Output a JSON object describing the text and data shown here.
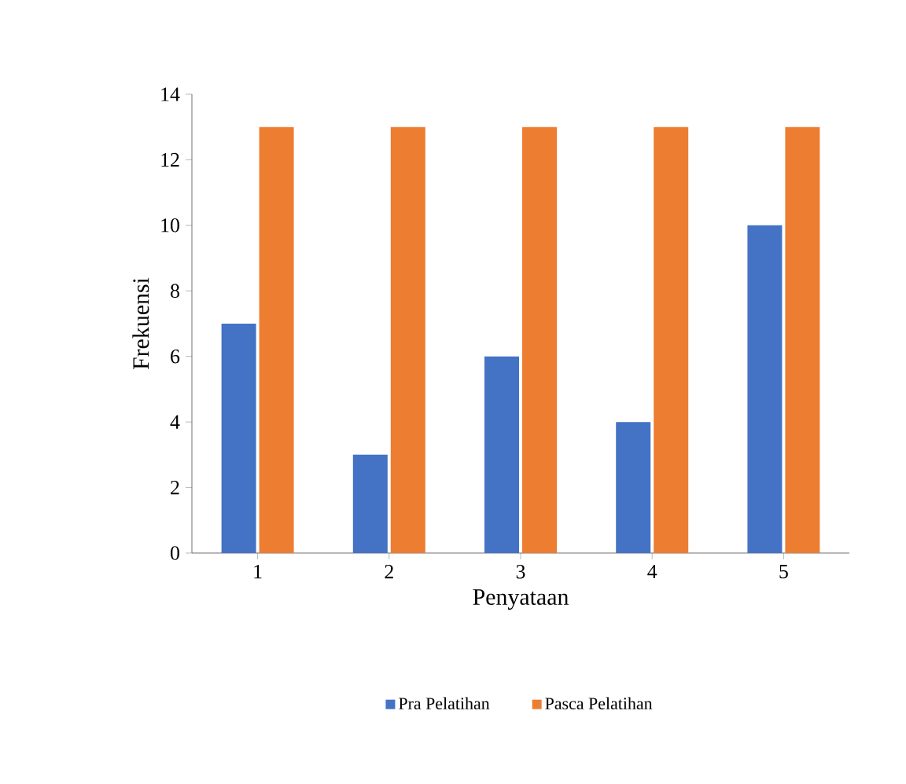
{
  "chart_data": {
    "type": "bar",
    "xlabel": "Penyataan",
    "ylabel": "Frekuensi",
    "categories": [
      "1",
      "2",
      "3",
      "4",
      "5"
    ],
    "series": [
      {
        "name": "Pra Pelatihan",
        "color": "#4472c4",
        "values": [
          7,
          3,
          6,
          4,
          10
        ]
      },
      {
        "name": "Pasca Pelatihan",
        "color": "#ed7d31",
        "values": [
          13,
          13,
          13,
          13,
          13
        ]
      }
    ],
    "ylim": [
      0,
      14
    ],
    "yticks": [
      0,
      2,
      4,
      6,
      8,
      10,
      12,
      14
    ],
    "grid": false,
    "legend": "bottom"
  }
}
